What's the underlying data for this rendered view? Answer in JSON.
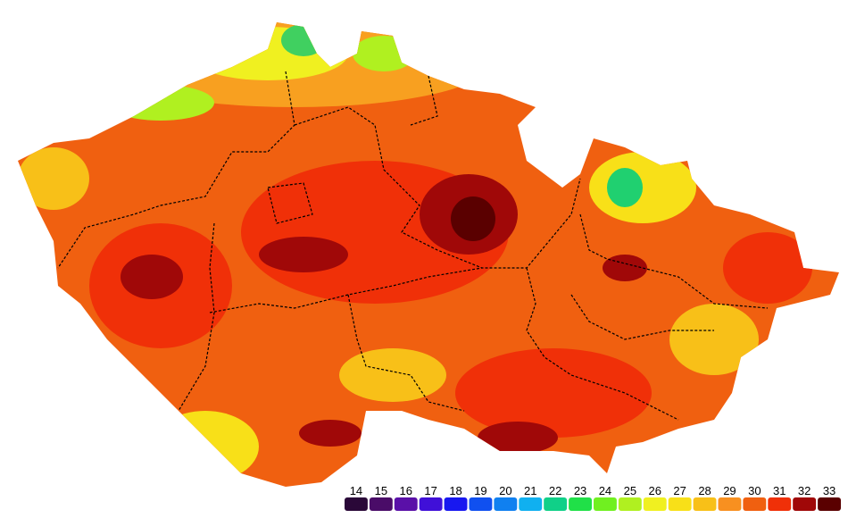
{
  "legend": {
    "items": [
      {
        "value": 14,
        "color": "#2a0838"
      },
      {
        "value": 15,
        "color": "#4a0c68"
      },
      {
        "value": 16,
        "color": "#5a10a8"
      },
      {
        "value": 17,
        "color": "#4010d8"
      },
      {
        "value": 18,
        "color": "#1818f0"
      },
      {
        "value": 19,
        "color": "#1050f0"
      },
      {
        "value": 20,
        "color": "#1080f0"
      },
      {
        "value": 21,
        "color": "#10b0f0"
      },
      {
        "value": 22,
        "color": "#10d088"
      },
      {
        "value": 23,
        "color": "#20e048"
      },
      {
        "value": 24,
        "color": "#70f020"
      },
      {
        "value": 25,
        "color": "#b0f020"
      },
      {
        "value": 26,
        "color": "#f0f020"
      },
      {
        "value": 27,
        "color": "#f8e018"
      },
      {
        "value": 28,
        "color": "#f8c018"
      },
      {
        "value": 29,
        "color": "#f89020"
      },
      {
        "value": 30,
        "color": "#f06010"
      },
      {
        "value": 31,
        "color": "#f03008"
      },
      {
        "value": 32,
        "color": "#a00808"
      },
      {
        "value": 33,
        "color": "#5a0000"
      }
    ]
  }
}
